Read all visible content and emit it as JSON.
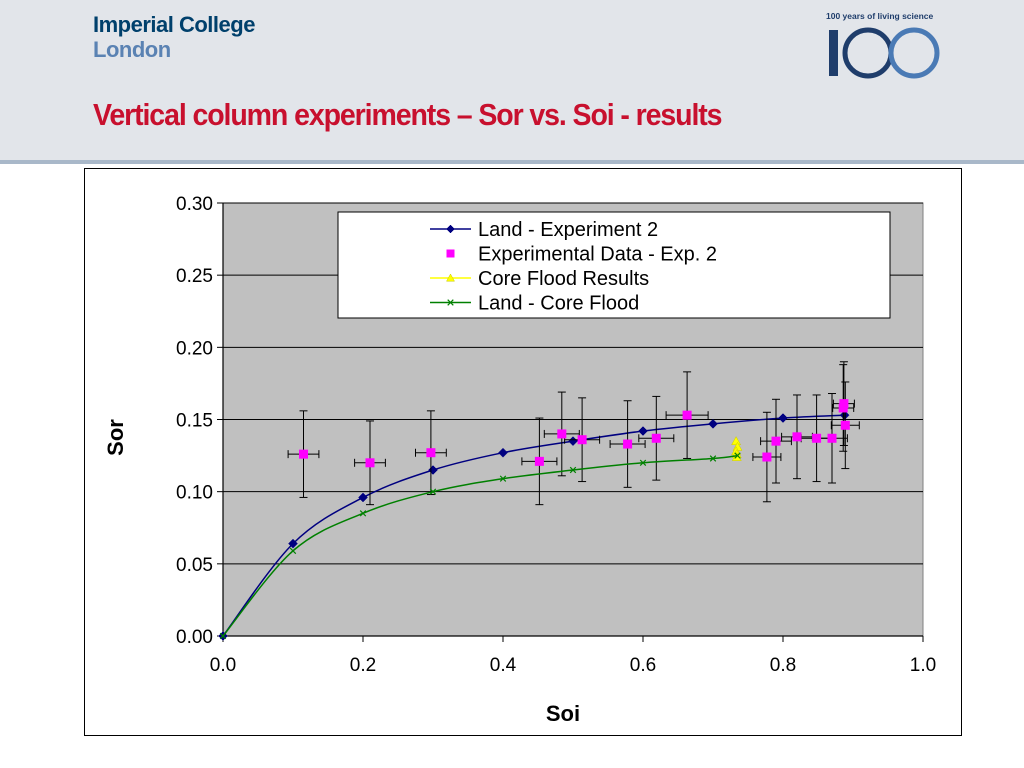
{
  "header": {
    "logo_line1": "Imperial College",
    "logo_line2": "London",
    "centenary_caption": "100 years of living science",
    "centenary_number": "100",
    "title": "Vertical column experiments – Sor vs. Soi - results"
  },
  "colors": {
    "header_bg": "#e2e5ea",
    "title_red": "#c8102e",
    "logo_blue": "#00406c",
    "plot_bg": "#c0c0c0",
    "land_exp2": "#000080",
    "exp_data": "#ff00ff",
    "core_flood": "#ffff00",
    "land_core": "#008000"
  },
  "chart_data": {
    "type": "scatter",
    "xlabel": "Soi",
    "ylabel": "Sor",
    "xlim": [
      0.0,
      1.0
    ],
    "ylim": [
      0.0,
      0.3
    ],
    "xticks": [
      "0.0",
      "0.2",
      "0.4",
      "0.6",
      "0.8",
      "1.0"
    ],
    "yticks": [
      "0.00",
      "0.05",
      "0.10",
      "0.15",
      "0.20",
      "0.25",
      "0.30"
    ],
    "grid": "horizontal",
    "legend_position": "top-right",
    "series": [
      {
        "name": "Land - Experiment 2",
        "kind": "line-with-markers",
        "marker": "diamond",
        "x": [
          0.0,
          0.1,
          0.2,
          0.3,
          0.4,
          0.5,
          0.6,
          0.7,
          0.8,
          0.888
        ],
        "y": [
          0.0,
          0.064,
          0.096,
          0.115,
          0.127,
          0.135,
          0.142,
          0.147,
          0.151,
          0.153
        ]
      },
      {
        "name": "Experimental Data - Exp. 2",
        "kind": "markers-with-errorbars",
        "marker": "square",
        "x": [
          0.115,
          0.21,
          0.297,
          0.452,
          0.484,
          0.513,
          0.578,
          0.619,
          0.663,
          0.777,
          0.79,
          0.82,
          0.848,
          0.87,
          0.886,
          0.887,
          0.889
        ],
        "y": [
          0.126,
          0.12,
          0.127,
          0.121,
          0.14,
          0.136,
          0.133,
          0.137,
          0.153,
          0.124,
          0.135,
          0.138,
          0.137,
          0.137,
          0.158,
          0.161,
          0.146
        ],
        "xerr": [
          0.022,
          0.022,
          0.022,
          0.025,
          0.025,
          0.025,
          0.025,
          0.025,
          0.03,
          0.02,
          0.022,
          0.022,
          0.022,
          0.022,
          0.015,
          0.015,
          0.02
        ],
        "yerr": [
          0.03,
          0.029,
          0.029,
          0.03,
          0.029,
          0.029,
          0.03,
          0.029,
          0.03,
          0.031,
          0.029,
          0.029,
          0.03,
          0.031,
          0.03,
          0.029,
          0.03
        ]
      },
      {
        "name": "Core Flood Results",
        "kind": "markers",
        "marker": "triangle",
        "x": [
          0.733,
          0.735,
          0.733,
          0.734,
          0.734
        ],
        "y": [
          0.135,
          0.131,
          0.128,
          0.126,
          0.124
        ]
      },
      {
        "name": "Land - Core Flood",
        "kind": "line-with-markers",
        "marker": "x",
        "x": [
          0.0,
          0.1,
          0.2,
          0.3,
          0.4,
          0.5,
          0.6,
          0.7,
          0.735
        ],
        "y": [
          0.0,
          0.059,
          0.085,
          0.1,
          0.109,
          0.115,
          0.12,
          0.123,
          0.125
        ]
      }
    ]
  }
}
